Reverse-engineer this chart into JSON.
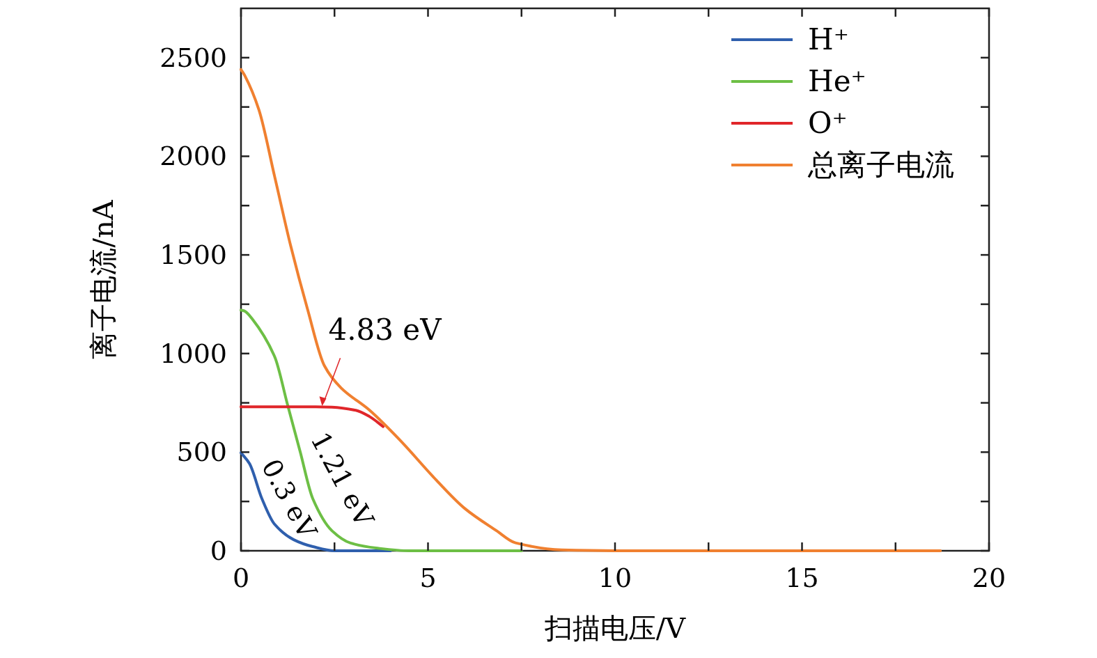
{
  "chart_data": {
    "type": "line",
    "xlabel": "扫描电压/V",
    "ylabel": "离子电流/nA",
    "xlim": [
      0,
      20
    ],
    "ylim": [
      0,
      2750
    ],
    "xticks": [
      0,
      {
        "value": 2.5,
        "label": null
      },
      5,
      {
        "value": 7.5,
        "label": null
      },
      10,
      {
        "value": 12.5,
        "label": null
      },
      15,
      {
        "value": 17.5,
        "label": null
      },
      20
    ],
    "yticks": [
      0,
      {
        "value": 250,
        "label": null
      },
      500,
      {
        "value": 750,
        "label": null
      },
      1000,
      {
        "value": 1250,
        "label": null
      },
      1500,
      {
        "value": 1750,
        "label": null
      },
      2000,
      {
        "value": 2250,
        "label": null
      },
      2500
    ],
    "legend": "top right",
    "grid": false,
    "marker": "none",
    "line_style": "solid",
    "series": [
      {
        "name": "H⁺",
        "color": "#2f5fad",
        "x": [
          0,
          0.23,
          0.56,
          0.9,
          1.41,
          1.92,
          2.5,
          4
        ],
        "values": [
          497,
          441,
          264,
          134,
          56,
          21,
          0,
          0
        ]
      },
      {
        "name": "He⁺",
        "color": "#6dbf45",
        "x": [
          0,
          0.1,
          0.29,
          0.9,
          1.24,
          1.58,
          1.92,
          2.43,
          2.93,
          3.61,
          4.5,
          7.5
        ],
        "values": [
          1220,
          1215,
          1178,
          984,
          744,
          504,
          264,
          102,
          39,
          14,
          0,
          0
        ]
      },
      {
        "name": "O⁺",
        "color": "#e0262a",
        "x": [
          0,
          1,
          2,
          2.43,
          3.07,
          3.44,
          3.8
        ],
        "values": [
          730,
          730,
          730,
          728,
          712,
          680,
          630
        ]
      },
      {
        "name": "总离子电流",
        "color": "#f08030",
        "x": [
          0,
          0.1,
          0.48,
          0.9,
          1.33,
          1.78,
          2.23,
          2.68,
          3.44,
          4.29,
          5.14,
          5.98,
          6.83,
          7.34,
          8.58,
          10,
          18.7
        ],
        "values": [
          2440,
          2410,
          2235,
          1897,
          1545,
          1224,
          938,
          825,
          712,
          553,
          375,
          215,
          102,
          40,
          4,
          0,
          0
        ]
      }
    ],
    "annotations": [
      {
        "text": "4.83 eV",
        "x": 2.17,
        "y": 730
      },
      "1.21 eV",
      "0.3 eV"
    ]
  }
}
